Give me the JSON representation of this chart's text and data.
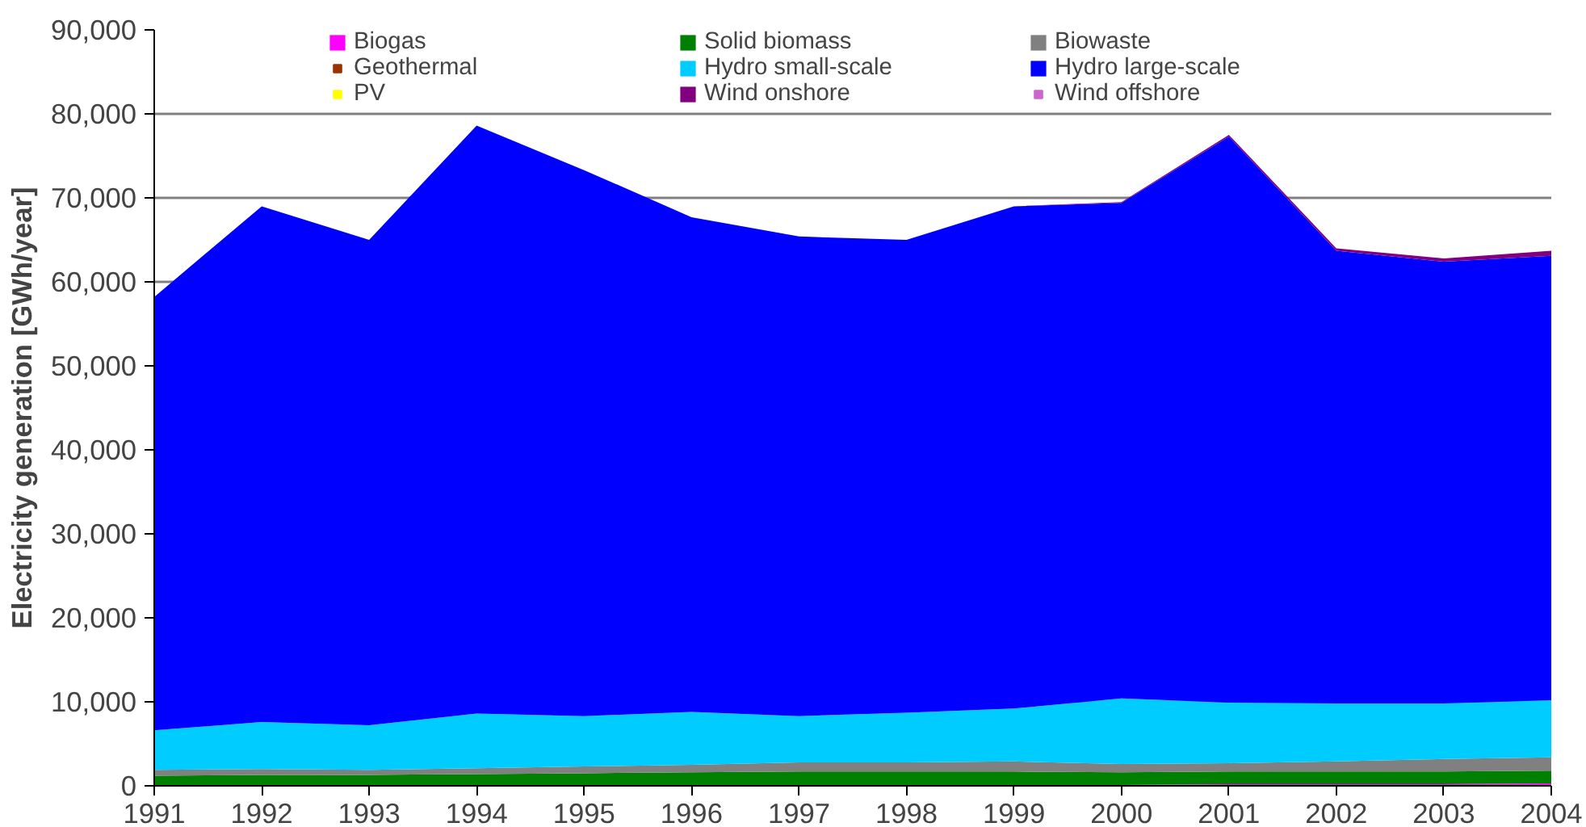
{
  "chart_data": {
    "type": "area",
    "stacked": true,
    "ylabel": "Electricity generation [GWh/year]",
    "x": [
      1991,
      1992,
      1993,
      1994,
      1995,
      1996,
      1997,
      1998,
      1999,
      2000,
      2001,
      2002,
      2003,
      2004
    ],
    "xlim": [
      1991,
      2004
    ],
    "xticks": [
      1991,
      1992,
      1993,
      1994,
      1995,
      1996,
      1997,
      1998,
      1999,
      2000,
      2001,
      2002,
      2003,
      2004
    ],
    "ylim": [
      0,
      90000
    ],
    "yticks": [
      {
        "value": 0,
        "label": "0"
      },
      {
        "value": 10000,
        "label": "10,000"
      },
      {
        "value": 20000,
        "label": "20,000"
      },
      {
        "value": 30000,
        "label": "30,000"
      },
      {
        "value": 40000,
        "label": "40,000"
      },
      {
        "value": 50000,
        "label": "50,000"
      },
      {
        "value": 60000,
        "label": "60,000"
      },
      {
        "value": 70000,
        "label": "70,000"
      },
      {
        "value": 80000,
        "label": "80,000"
      },
      {
        "value": 90000,
        "label": "90,000"
      }
    ],
    "grid": "y",
    "legend": "top",
    "series": [
      {
        "name": "Biogas",
        "color": "#ff00ff",
        "values": [
          0,
          0,
          0,
          0,
          0,
          0,
          0,
          0,
          100,
          100,
          200,
          200,
          200,
          300
        ]
      },
      {
        "name": "Solid biomass",
        "color": "#008000",
        "values": [
          1200,
          1300,
          1300,
          1400,
          1500,
          1600,
          1700,
          1700,
          1600,
          1500,
          1500,
          1500,
          1500,
          1500
        ]
      },
      {
        "name": "Biowaste",
        "color": "#808080",
        "values": [
          700,
          700,
          600,
          700,
          800,
          900,
          1100,
          1100,
          1200,
          1000,
          1000,
          1200,
          1500,
          1600
        ]
      },
      {
        "name": "Geothermal",
        "color": "#993300",
        "values": [
          null,
          null,
          null,
          null,
          null,
          null,
          null,
          null,
          null,
          null,
          null,
          null,
          null,
          null
        ]
      },
      {
        "name": "Hydro small-scale",
        "color": "#00ccff",
        "values": [
          4700,
          5600,
          5300,
          6500,
          6000,
          6300,
          5500,
          5900,
          6300,
          7800,
          7200,
          6900,
          6600,
          6800
        ]
      },
      {
        "name": "Hydro large-scale",
        "color": "#0000ff",
        "values": [
          51600,
          61400,
          57800,
          70000,
          65000,
          58900,
          57100,
          56300,
          59800,
          59000,
          67400,
          53900,
          52600,
          52900
        ]
      },
      {
        "name": "PV",
        "color": "#ffff00",
        "values": [
          null,
          null,
          null,
          null,
          null,
          null,
          null,
          null,
          null,
          null,
          null,
          null,
          null,
          null
        ]
      },
      {
        "name": "Wind onshore",
        "color": "#800080",
        "values": [
          0,
          0,
          0,
          0,
          0,
          0,
          0,
          0,
          0,
          100,
          200,
          300,
          400,
          600
        ]
      },
      {
        "name": "Wind offshore",
        "color": "#cc66cc",
        "values": [
          null,
          null,
          null,
          null,
          null,
          null,
          null,
          null,
          null,
          null,
          null,
          null,
          null,
          null
        ]
      }
    ]
  }
}
